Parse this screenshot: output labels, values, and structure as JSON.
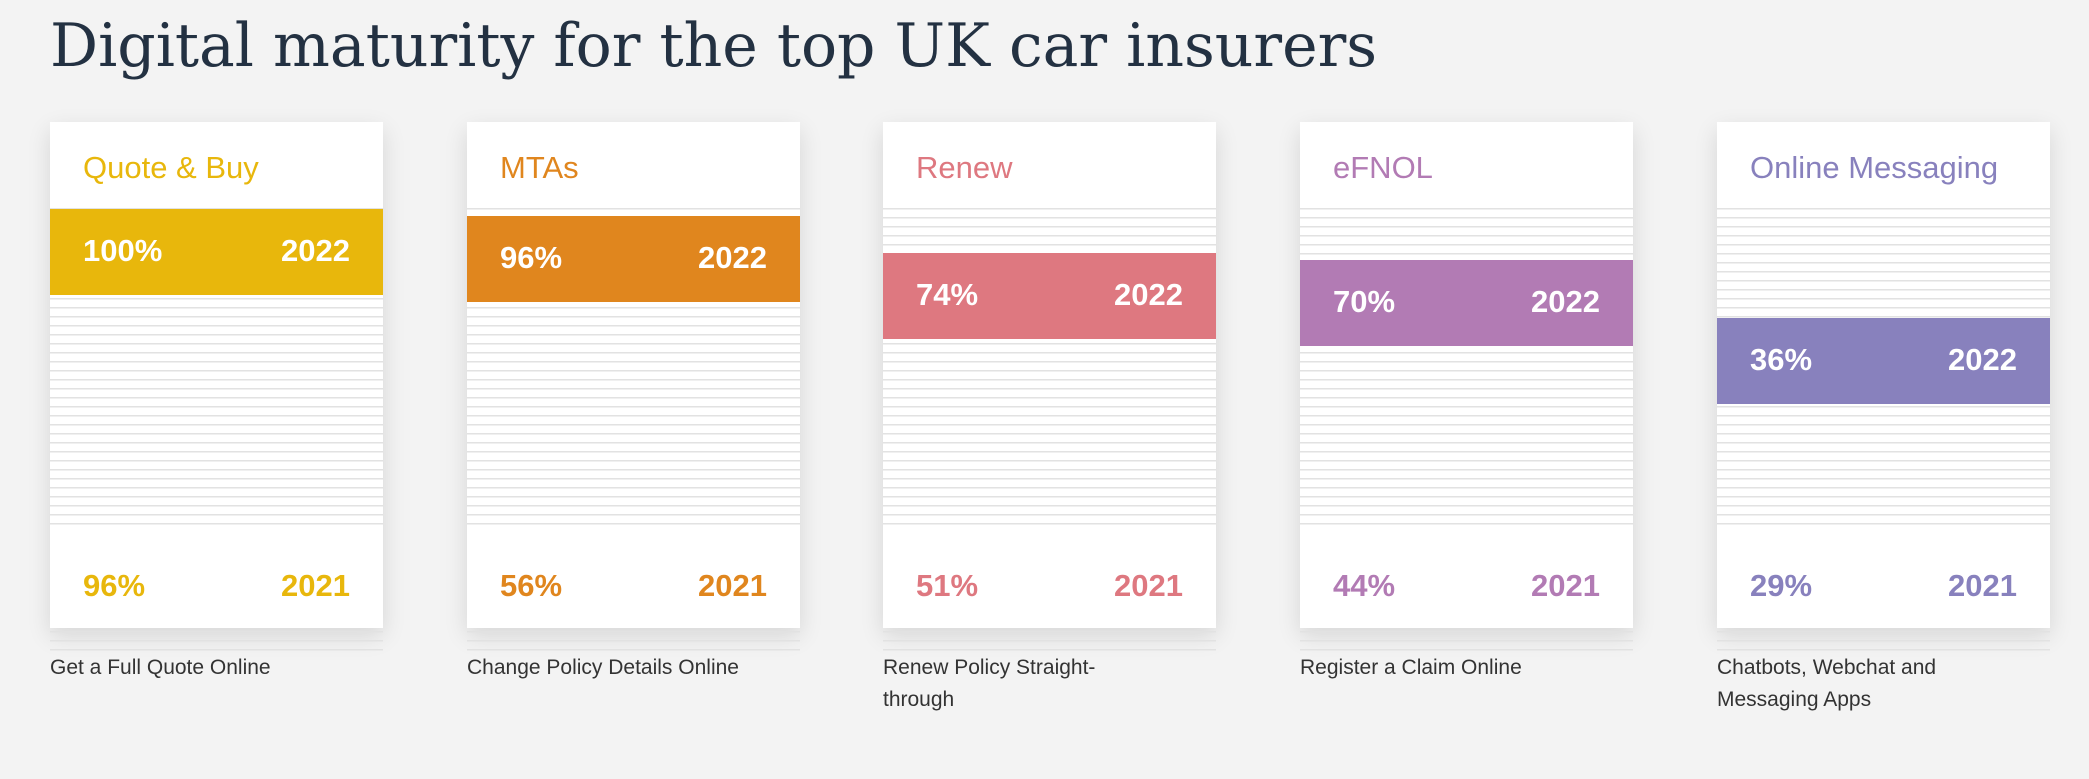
{
  "page": {
    "title": "Digital maturity for the top UK car insurers"
  },
  "chart_data": [
    {
      "type": "bar",
      "title": "Quote & Buy",
      "caption": "Get a Full Quote Online",
      "color": "#e8b70c",
      "series": [
        {
          "name": "2022",
          "value": 100,
          "label": "100%"
        },
        {
          "name": "2021",
          "value": 96,
          "label": "96%"
        }
      ]
    },
    {
      "type": "bar",
      "title": "MTAs",
      "caption": "Change Policy Details Online",
      "color": "#e0861e",
      "series": [
        {
          "name": "2022",
          "value": 96,
          "label": "96%"
        },
        {
          "name": "2021",
          "value": 56,
          "label": "56%"
        }
      ]
    },
    {
      "type": "bar",
      "title": "Renew",
      "caption": "Renew Policy Straight-through",
      "color": "#de7880",
      "series": [
        {
          "name": "2022",
          "value": 74,
          "label": "74%"
        },
        {
          "name": "2021",
          "value": 51,
          "label": "51%"
        }
      ]
    },
    {
      "type": "bar",
      "title": "eFNOL",
      "caption": "Register a Claim Online",
      "color": "#b27bb4",
      "series": [
        {
          "name": "2022",
          "value": 70,
          "label": "70%"
        },
        {
          "name": "2021",
          "value": 44,
          "label": "44%"
        }
      ]
    },
    {
      "type": "bar",
      "title": "Online Messaging",
      "caption": "Chatbots, Webchat and Messaging Apps",
      "color": "#8881bd",
      "series": [
        {
          "name": "2022",
          "value": 36,
          "label": "36%"
        },
        {
          "name": "2021",
          "value": 29,
          "label": "29%"
        }
      ]
    }
  ]
}
